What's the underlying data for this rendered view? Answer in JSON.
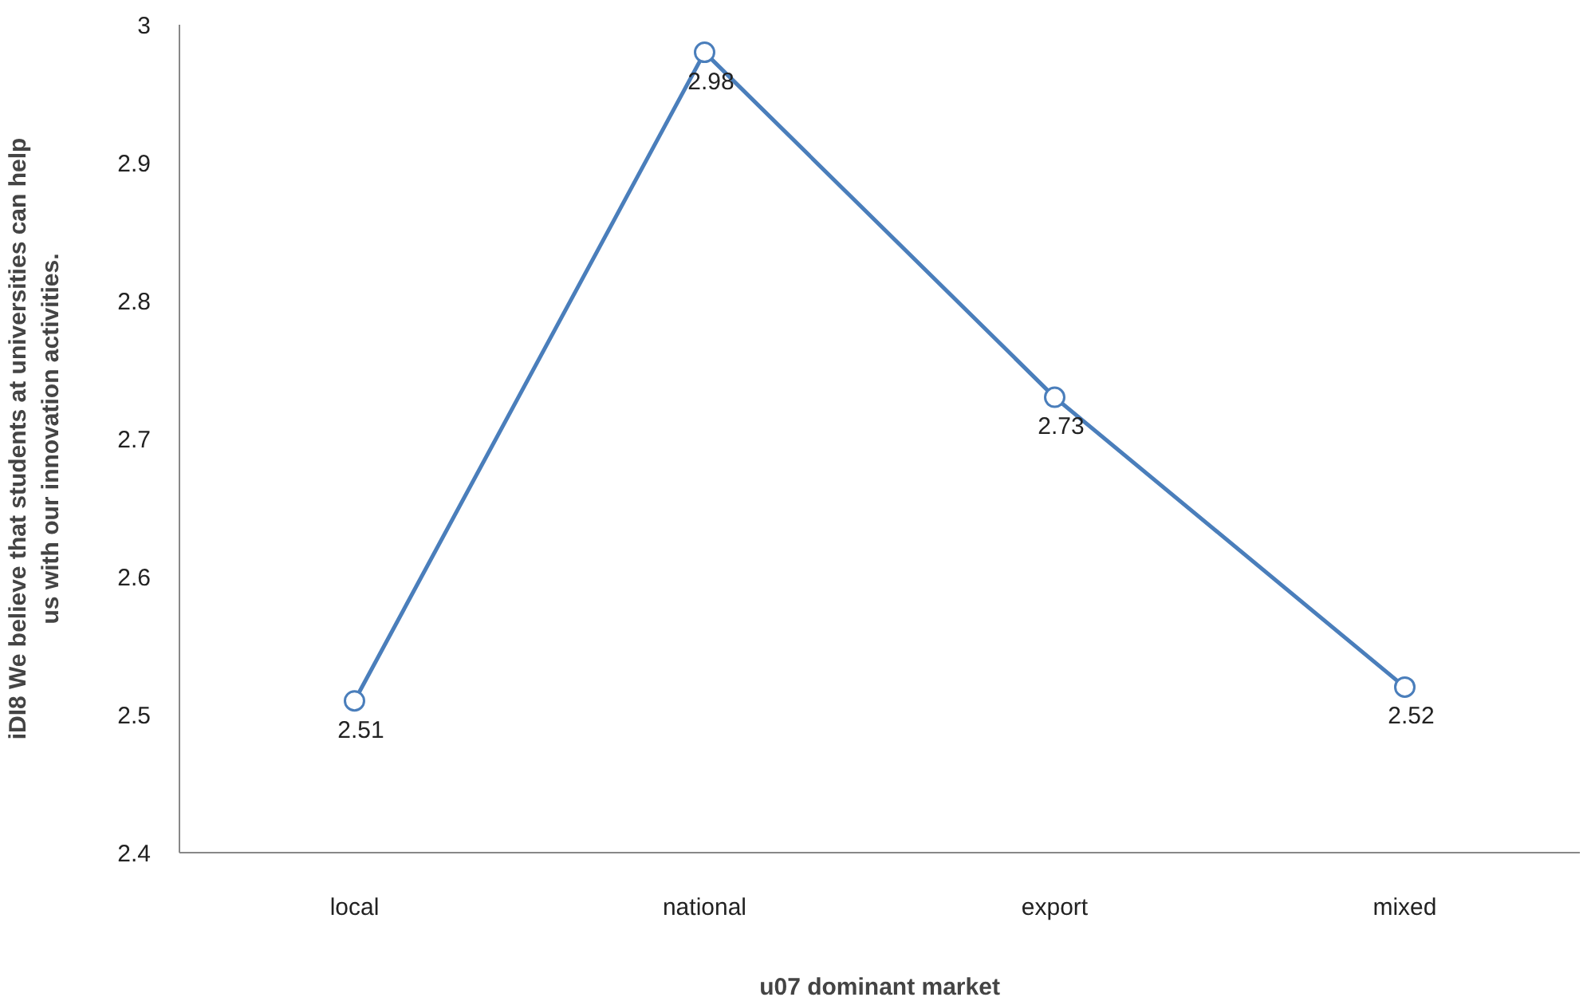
{
  "chart_data": {
    "type": "line",
    "xlabel": "u07 dominant market",
    "ylabel": "iDI8 We believe that students at universities can help us with our innovation activities.",
    "categories": [
      "local",
      "national",
      "export",
      "mixed"
    ],
    "series": [
      {
        "color": "#4a7ebb",
        "values": [
          2.51,
          2.98,
          2.73,
          2.52
        ]
      }
    ],
    "ylim": [
      2.4,
      3.0
    ],
    "yticks": [
      2.4,
      2.5,
      2.6,
      2.7,
      2.8,
      2.9,
      {
        "value": 3.0,
        "label": "3"
      }
    ],
    "grid": false,
    "marker": "circle",
    "line_style": "solid",
    "data_labels": true
  }
}
